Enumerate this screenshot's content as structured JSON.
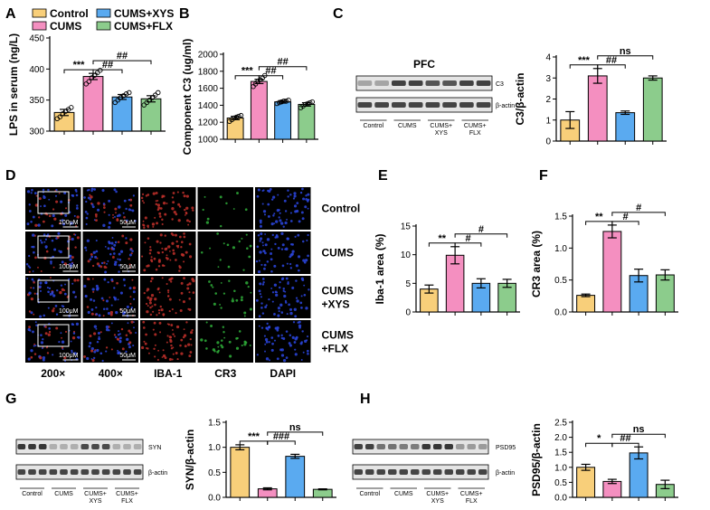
{
  "colors": {
    "Control": "#f8cf7a",
    "CUMS": "#f48fc0",
    "CUMS+XYS": "#5aaaf0",
    "CUMS+FLX": "#8ccc8c"
  },
  "legend": [
    "Control",
    "CUMS",
    "CUMS+XYS",
    "CUMS+FLX"
  ],
  "panels": {
    "A": "A",
    "B": "B",
    "C": "C",
    "D": "D",
    "E": "E",
    "F": "F",
    "G": "G",
    "H": "H"
  },
  "blots": {
    "C": {
      "title": "PFC",
      "protein": "C3",
      "loading": "β-actin",
      "lanes": [
        "Control",
        "CUMS",
        "CUMS+\nXYS",
        "CUMS+\nFLX"
      ]
    },
    "G": {
      "protein": "SYN",
      "loading": "β-actin",
      "lanes": [
        "Control",
        "CUMS",
        "CUMS+\nXYS",
        "CUMS+\nFLX"
      ]
    },
    "H": {
      "protein": "PSD95",
      "loading": "β-actin",
      "lanes": [
        "Control",
        "CUMS",
        "CUMS+\nXYS",
        "CUMS+\nFLX"
      ]
    }
  },
  "micro": {
    "rows": [
      "Control",
      "CUMS",
      "CUMS\n+XYS",
      "CUMS\n+FLX"
    ],
    "cols": [
      "200×",
      "400×",
      "IBA-1",
      "CR3",
      "DAPI"
    ],
    "scale200": "100μM",
    "scale400": "50μM"
  },
  "chart_data": [
    {
      "id": "A",
      "type": "bar",
      "categories": [
        "Control",
        "CUMS",
        "CUMS+XYS",
        "CUMS+FLX"
      ],
      "values": [
        330,
        388,
        355,
        352
      ],
      "errors": [
        5,
        5,
        4,
        5
      ],
      "points": [
        [
          320,
          323,
          328,
          332,
          335,
          338
        ],
        [
          376,
          380,
          386,
          390,
          394,
          398
        ],
        [
          346,
          350,
          354,
          357,
          360,
          362
        ],
        [
          342,
          346,
          350,
          354,
          358,
          362
        ]
      ],
      "ylabel": "LPS in serum (ng/L)",
      "ylim": [
        300,
        450
      ],
      "yticks": [
        300,
        350,
        400,
        450
      ],
      "sig": [
        {
          "a": 0,
          "b": 1,
          "t": "***"
        },
        {
          "a": 1,
          "b": 2,
          "t": "##"
        },
        {
          "a": 1,
          "b": 3,
          "t": "##"
        }
      ]
    },
    {
      "id": "B",
      "type": "bar",
      "categories": [
        "Control",
        "CUMS",
        "CUMS+XYS",
        "CUMS+FLX"
      ],
      "values": [
        1250,
        1680,
        1440,
        1410
      ],
      "errors": [
        20,
        25,
        15,
        20
      ],
      "points": [
        [
          1210,
          1230,
          1250,
          1260,
          1270,
          1280
        ],
        [
          1620,
          1650,
          1680,
          1700,
          1720,
          1750
        ],
        [
          1420,
          1430,
          1440,
          1450,
          1450,
          1460
        ],
        [
          1370,
          1390,
          1410,
          1420,
          1430,
          1440
        ]
      ],
      "ylabel": "Component C3 (ug/ml)",
      "ylim": [
        1000,
        2000
      ],
      "yticks": [
        1000,
        1200,
        1400,
        1600,
        1800,
        2000
      ],
      "sig": [
        {
          "a": 0,
          "b": 1,
          "t": "***"
        },
        {
          "a": 1,
          "b": 2,
          "t": "##"
        },
        {
          "a": 1,
          "b": 3,
          "t": "##"
        }
      ]
    },
    {
      "id": "C",
      "type": "bar",
      "categories": [
        "Control",
        "CUMS",
        "CUMS+XYS",
        "CUMS+FLX"
      ],
      "values": [
        1.0,
        3.1,
        1.35,
        3.0
      ],
      "errors": [
        0.4,
        0.35,
        0.08,
        0.1
      ],
      "ylabel": "C3/β-actin",
      "ylim": [
        0,
        4
      ],
      "yticks": [
        0,
        1,
        2,
        3,
        4
      ],
      "sig": [
        {
          "a": 0,
          "b": 1,
          "t": "***"
        },
        {
          "a": 1,
          "b": 2,
          "t": "##"
        },
        {
          "a": 1,
          "b": 3,
          "t": "ns"
        }
      ]
    },
    {
      "id": "E",
      "type": "bar",
      "categories": [
        "Control",
        "CUMS",
        "CUMS+XYS",
        "CUMS+FLX"
      ],
      "values": [
        4.0,
        9.9,
        5.0,
        5.0
      ],
      "errors": [
        0.7,
        1.5,
        0.8,
        0.7
      ],
      "ylabel": "Iba-1 area (%)",
      "ylim": [
        0,
        15
      ],
      "yticks": [
        0,
        5,
        10,
        15
      ],
      "sig": [
        {
          "a": 0,
          "b": 1,
          "t": "**"
        },
        {
          "a": 1,
          "b": 2,
          "t": "#"
        },
        {
          "a": 1,
          "b": 3,
          "t": "#"
        }
      ]
    },
    {
      "id": "F",
      "type": "bar",
      "categories": [
        "Control",
        "CUMS",
        "CUMS+XYS",
        "CUMS+FLX"
      ],
      "values": [
        0.26,
        1.26,
        0.57,
        0.58
      ],
      "errors": [
        0.02,
        0.1,
        0.1,
        0.08
      ],
      "ylabel": "CR3 area (%)",
      "ylim": [
        0,
        1.5
      ],
      "yticks": [
        0.0,
        0.5,
        1.0,
        1.5
      ],
      "ydec": 1,
      "sig": [
        {
          "a": 0,
          "b": 1,
          "t": "**"
        },
        {
          "a": 1,
          "b": 2,
          "t": "#"
        },
        {
          "a": 1,
          "b": 3,
          "t": "#"
        }
      ]
    },
    {
      "id": "G",
      "type": "bar",
      "categories": [
        "Control",
        "CUMS",
        "CUMS+XYS",
        "CUMS+FLX"
      ],
      "values": [
        1.0,
        0.17,
        0.82,
        0.16
      ],
      "errors": [
        0.05,
        0.02,
        0.04,
        0.01
      ],
      "ylabel": "SYN/β-actin",
      "ylim": [
        0,
        1.5
      ],
      "yticks": [
        0.0,
        0.5,
        1.0,
        1.5
      ],
      "ydec": 1,
      "sig": [
        {
          "a": 0,
          "b": 1,
          "t": "***"
        },
        {
          "a": 1,
          "b": 2,
          "t": "###"
        },
        {
          "a": 1,
          "b": 3,
          "t": "ns"
        }
      ]
    },
    {
      "id": "H",
      "type": "bar",
      "categories": [
        "Control",
        "CUMS",
        "CUMS+XYS",
        "CUMS+FLX"
      ],
      "values": [
        1.0,
        0.53,
        1.48,
        0.43
      ],
      "errors": [
        0.1,
        0.07,
        0.2,
        0.14
      ],
      "ylabel": "PSD95/β-actin",
      "ylim": [
        0,
        2.5
      ],
      "yticks": [
        0.0,
        0.5,
        1.0,
        1.5,
        2.0,
        2.5
      ],
      "ydec": 1,
      "sig": [
        {
          "a": 0,
          "b": 1,
          "t": "*"
        },
        {
          "a": 1,
          "b": 2,
          "t": "##"
        },
        {
          "a": 1,
          "b": 3,
          "t": "ns"
        }
      ]
    }
  ]
}
